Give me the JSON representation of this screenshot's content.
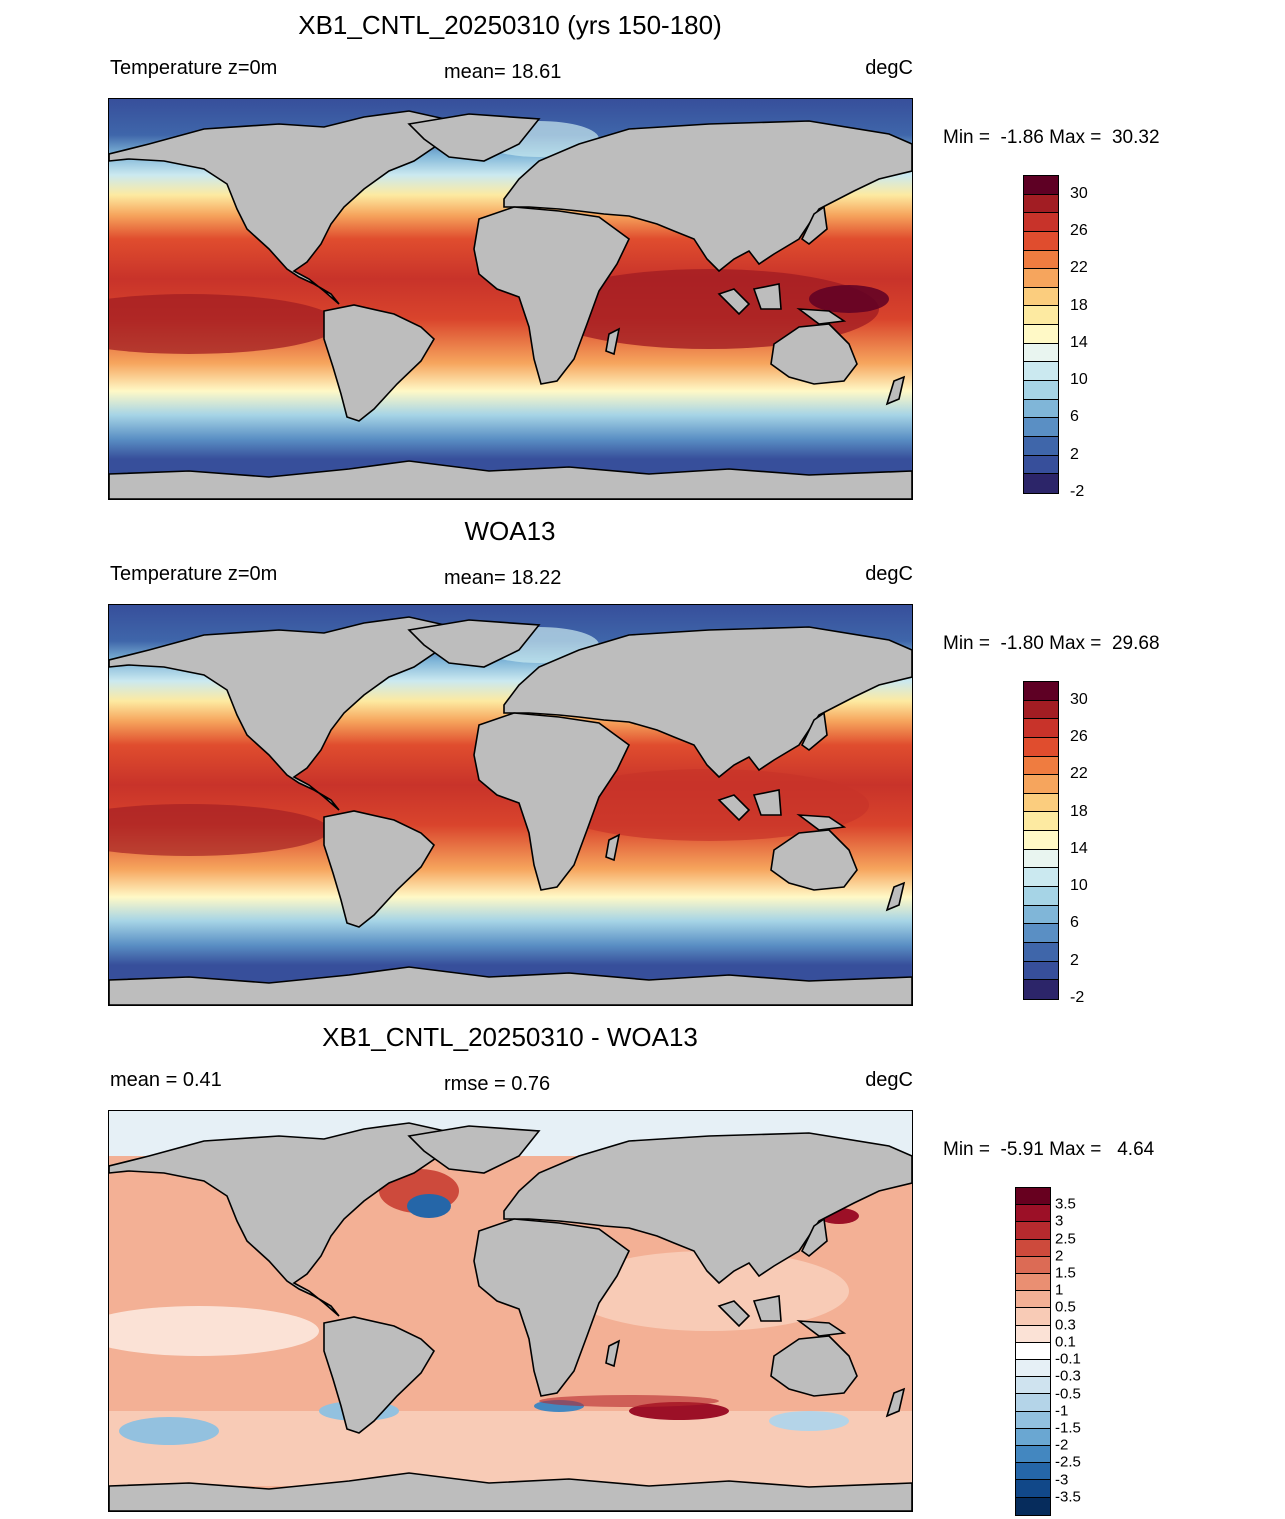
{
  "panels": [
    {
      "title": "XB1_CNTL_20250310 (yrs 150-180)",
      "left_label": "Temperature z=0m",
      "mid_label": "mean=  18.61",
      "units": "degC",
      "minmax": "Min =  -1.86 Max =  30.32",
      "kind": "sst",
      "colorbar": {
        "colors": [
          "#5e0024",
          "#a21d23",
          "#c8332a",
          "#e04d2e",
          "#ef7c40",
          "#f6a55d",
          "#fbcd7e",
          "#fdeaa1",
          "#fff9c6",
          "#e9f5f0",
          "#cbe9f0",
          "#a6d4e6",
          "#80b6d8",
          "#5a8fc4",
          "#3f66aa",
          "#374f9b",
          "#2c2569"
        ],
        "labels": [
          {
            "text": "30",
            "pos": 1
          },
          {
            "text": "26",
            "pos": 3
          },
          {
            "text": "22",
            "pos": 5
          },
          {
            "text": "18",
            "pos": 7
          },
          {
            "text": "14",
            "pos": 9
          },
          {
            "text": "10",
            "pos": 11
          },
          {
            "text": "6",
            "pos": 13
          },
          {
            "text": "2",
            "pos": 15
          },
          {
            "text": "-2",
            "pos": 17
          }
        ]
      }
    },
    {
      "title": "WOA13",
      "left_label": "Temperature z=0m",
      "mid_label": "mean=  18.22",
      "units": "degC",
      "minmax": "Min =  -1.80 Max =  29.68",
      "kind": "sst",
      "colorbar": {
        "colors": [
          "#5e0024",
          "#a21d23",
          "#c8332a",
          "#e04d2e",
          "#ef7c40",
          "#f6a55d",
          "#fbcd7e",
          "#fdeaa1",
          "#fff9c6",
          "#e9f5f0",
          "#cbe9f0",
          "#a6d4e6",
          "#80b6d8",
          "#5a8fc4",
          "#3f66aa",
          "#374f9b",
          "#2c2569"
        ],
        "labels": [
          {
            "text": "30",
            "pos": 1
          },
          {
            "text": "26",
            "pos": 3
          },
          {
            "text": "22",
            "pos": 5
          },
          {
            "text": "18",
            "pos": 7
          },
          {
            "text": "14",
            "pos": 9
          },
          {
            "text": "10",
            "pos": 11
          },
          {
            "text": "6",
            "pos": 13
          },
          {
            "text": "2",
            "pos": 15
          },
          {
            "text": "-2",
            "pos": 17
          }
        ]
      }
    },
    {
      "title": "XB1_CNTL_20250310 - WOA13",
      "left_label": "mean =   0.41",
      "mid_label": "rmse =   0.76",
      "units": "degC",
      "minmax": "Min =  -5.91 Max =   4.64",
      "kind": "diff",
      "colorbar": {
        "colors": [
          "#67001f",
          "#9c1027",
          "#b72a2e",
          "#cd4a3c",
          "#dc6b55",
          "#ea8f72",
          "#f3b095",
          "#f8cbb6",
          "#fbe2d6",
          "#ffffff",
          "#e6f0f6",
          "#cfe3ef",
          "#b4d4e8",
          "#93c1df",
          "#6aa7d2",
          "#4387c0",
          "#2566a8",
          "#114889",
          "#062c5c"
        ],
        "labels": [
          {
            "text": "3.5",
            "pos": 1
          },
          {
            "text": "3",
            "pos": 2
          },
          {
            "text": "2.5",
            "pos": 3
          },
          {
            "text": "2",
            "pos": 4
          },
          {
            "text": "1.5",
            "pos": 5
          },
          {
            "text": "1",
            "pos": 6
          },
          {
            "text": "0.5",
            "pos": 7
          },
          {
            "text": "0.3",
            "pos": 8
          },
          {
            "text": "0.1",
            "pos": 9
          },
          {
            "text": "-0.1",
            "pos": 10
          },
          {
            "text": "-0.3",
            "pos": 11
          },
          {
            "text": "-0.5",
            "pos": 12
          },
          {
            "text": "-1",
            "pos": 13
          },
          {
            "text": "-1.5",
            "pos": 14
          },
          {
            "text": "-2",
            "pos": 15
          },
          {
            "text": "-2.5",
            "pos": 16
          },
          {
            "text": "-3",
            "pos": 17
          },
          {
            "text": "-3.5",
            "pos": 18
          }
        ]
      }
    }
  ]
}
